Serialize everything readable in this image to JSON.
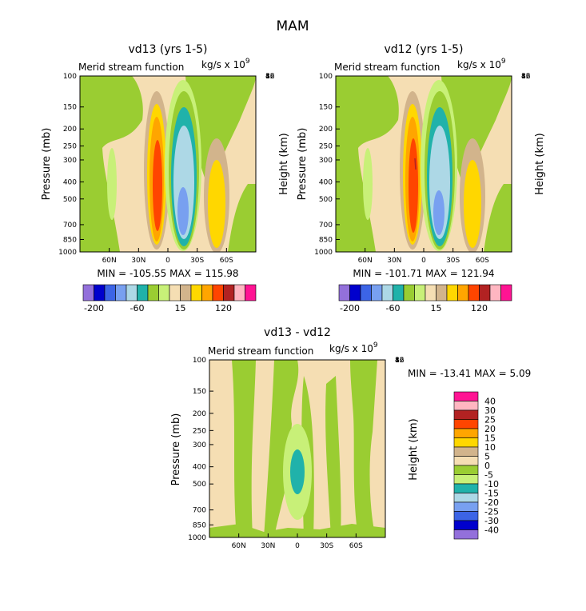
{
  "page_title": "MAM",
  "chart_data": [
    {
      "type": "heatmap",
      "title": "vd13 (yrs 1-5)",
      "subtitle": "Merid stream function",
      "units": "kg/s x 10",
      "units_exp": "9",
      "ylabel": "Pressure (mb)",
      "ylabel_right": "Height (km)",
      "y_ticks": [
        "100",
        "150",
        "200",
        "250",
        "300",
        "400",
        "500",
        "700",
        "850",
        "1000"
      ],
      "y_ticks_right": [
        "16",
        "12",
        "8",
        "4"
      ],
      "x_ticks": [
        "60N",
        "30N",
        "0",
        "30S",
        "60S"
      ],
      "stats": "MIN = -105.55   MAX = 115.98",
      "colorbar_ticks": [
        "-200",
        "-60",
        "15",
        "120"
      ]
    },
    {
      "type": "heatmap",
      "title": "vd12 (yrs 1-5)",
      "subtitle": "Merid stream function",
      "units": "kg/s x 10",
      "units_exp": "9",
      "ylabel": "Pressure (mb)",
      "ylabel_right": "Height (km)",
      "y_ticks": [
        "100",
        "150",
        "200",
        "250",
        "300",
        "400",
        "500",
        "700",
        "850",
        "1000"
      ],
      "y_ticks_right": [
        "16",
        "12",
        "8",
        "4"
      ],
      "x_ticks": [
        "60N",
        "30N",
        "0",
        "30S",
        "60S"
      ],
      "stats": "MIN = -101.71   MAX = 121.94",
      "colorbar_ticks": [
        "-200",
        "-60",
        "15",
        "120"
      ]
    },
    {
      "type": "heatmap",
      "title": "vd13 - vd12",
      "subtitle": "Merid stream function",
      "units": "kg/s x 10",
      "units_exp": "9",
      "ylabel": "Pressure (mb)",
      "ylabel_right": "Height (km)",
      "y_ticks": [
        "100",
        "150",
        "200",
        "250",
        "300",
        "400",
        "500",
        "700",
        "850",
        "1000"
      ],
      "y_ticks_right": [
        "16",
        "12",
        "8",
        "4"
      ],
      "x_ticks": [
        "60N",
        "30N",
        "0",
        "30S",
        "60S"
      ],
      "stats": "MIN = -13.41   MAX =    5.09",
      "legend_labels": [
        "40",
        "30",
        "25",
        "20",
        "15",
        "10",
        "5",
        "0",
        "-5",
        "-10",
        "-15",
        "-20",
        "-25",
        "-30",
        "-40"
      ]
    }
  ],
  "colors": {
    "scale": [
      "#9370db",
      "#0000cd",
      "#3c64e6",
      "#78a0f0",
      "#add8e6",
      "#20b2aa",
      "#9acd32",
      "#c8f078",
      "#f5deb3",
      "#d2b48c",
      "#ffd700",
      "#ffa500",
      "#ff4500",
      "#b22222",
      "#ffb6c1",
      "#ff1493"
    ],
    "diff_scale": [
      "#ff1493",
      "#ffb6c1",
      "#b22222",
      "#ff4500",
      "#ffa500",
      "#ffd700",
      "#d2b48c",
      "#f5deb3",
      "#9acd32",
      "#c8f078",
      "#20b2aa",
      "#add8e6",
      "#78a0f0",
      "#3c64e6",
      "#0000cd",
      "#9370db"
    ]
  }
}
